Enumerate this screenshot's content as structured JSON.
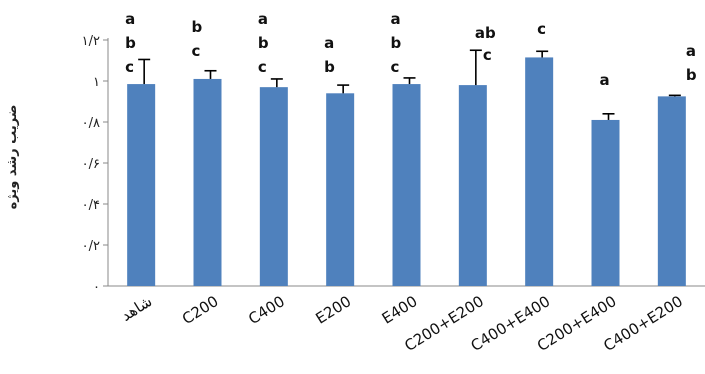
{
  "chart_data": {
    "type": "bar",
    "ylabel": "ضریب رشد ویژه",
    "ylim": [
      0,
      1.2
    ],
    "yticks": [
      {
        "value": 0,
        "label": "٠"
      },
      {
        "value": 0.2,
        "label": "٠/٢"
      },
      {
        "value": 0.4,
        "label": "٠/۴"
      },
      {
        "value": 0.6,
        "label": "٠/۶"
      },
      {
        "value": 0.8,
        "label": "٠/٨"
      },
      {
        "value": 1.0,
        "label": "١"
      },
      {
        "value": 1.2,
        "label": "١/٢"
      }
    ],
    "categories": [
      "شاهد",
      "C200",
      "C400",
      "E200",
      "E400",
      "C200+E200",
      "C400+E400",
      "C200+E400",
      "C400+E200"
    ],
    "values": [
      0.985,
      1.01,
      0.97,
      0.94,
      0.985,
      0.98,
      1.115,
      0.81,
      0.925
    ],
    "errors": [
      0.12,
      0.04,
      0.04,
      0.04,
      0.03,
      0.17,
      0.03,
      0.03,
      0.005
    ],
    "significance": [
      [
        "a",
        "b",
        "c"
      ],
      [
        "b",
        "c"
      ],
      [
        "a",
        "b",
        "c"
      ],
      [
        "a",
        "b"
      ],
      [
        "a",
        "b",
        "c"
      ],
      [
        "ab",
        "c"
      ],
      [
        "c"
      ],
      [
        "a"
      ],
      [
        "a",
        "b"
      ]
    ],
    "bar_color": "#4f81bd",
    "grid": false
  }
}
